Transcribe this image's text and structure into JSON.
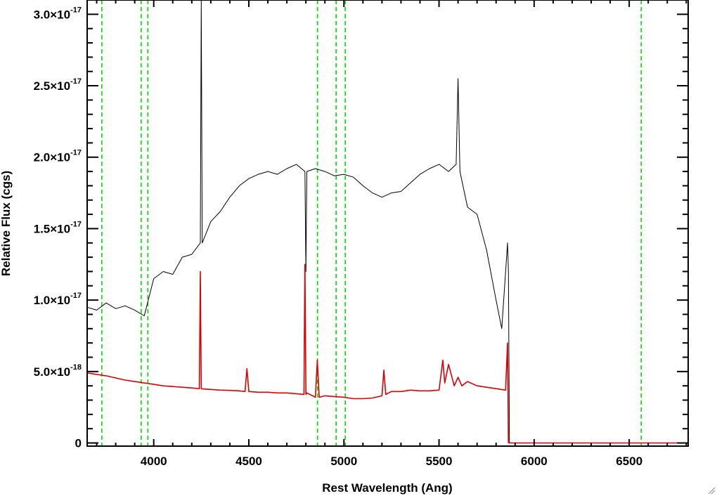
{
  "chart_data": {
    "type": "line",
    "title": "",
    "xlabel": "Rest Wavelength (Ang)",
    "ylabel": "Relative Flux (cgs)",
    "xlim": [
      3650,
      6810
    ],
    "ylim": [
      -2.2e-19,
      3.1e-17
    ],
    "x_ticks": [
      {
        "value": 4000,
        "label": "4000"
      },
      {
        "value": 4500,
        "label": "4500"
      },
      {
        "value": 5000,
        "label": "5000"
      },
      {
        "value": 5500,
        "label": "5500"
      },
      {
        "value": 6000,
        "label": "6000"
      },
      {
        "value": 6500,
        "label": "6500"
      }
    ],
    "y_ticks": [
      {
        "value": 0,
        "mantissa": "0",
        "exp": ""
      },
      {
        "value": 5e-18,
        "mantissa": "5.0×10",
        "exp": "-18"
      },
      {
        "value": 1e-17,
        "mantissa": "1.0×10",
        "exp": "-17"
      },
      {
        "value": 1.5e-17,
        "mantissa": "1.5×10",
        "exp": "-17"
      },
      {
        "value": 2e-17,
        "mantissa": "2.0×10",
        "exp": "-17"
      },
      {
        "value": 2.5e-17,
        "mantissa": "2.5×10",
        "exp": "-17"
      },
      {
        "value": 3e-17,
        "mantissa": "3.0×10",
        "exp": "-17"
      }
    ],
    "reference_lines": {
      "color": "#00dd00",
      "x": [
        3727,
        3934,
        3969,
        4861,
        4959,
        5007,
        6563
      ]
    },
    "series": [
      {
        "color": "#000000",
        "x": [
          3650,
          3700,
          3750,
          3800,
          3850,
          3900,
          3950,
          4000,
          4050,
          4100,
          4150,
          4200,
          4245,
          4250,
          4255,
          4300,
          4350,
          4400,
          4450,
          4500,
          4550,
          4600,
          4650,
          4700,
          4750,
          4795,
          4800,
          4805,
          4850,
          4900,
          4950,
          5000,
          5050,
          5100,
          5150,
          5200,
          5250,
          5300,
          5350,
          5400,
          5450,
          5500,
          5550,
          5590,
          5600,
          5610,
          5650,
          5700,
          5750,
          5800,
          5830,
          5860,
          5865,
          5870
        ],
        "y": [
          9.5e-18,
          9.3e-18,
          9.8e-18,
          9.4e-18,
          9.6e-18,
          9.3e-18,
          8.9e-18,
          1.15e-17,
          1.2e-17,
          1.18e-17,
          1.3e-17,
          1.32e-17,
          1.4e-17,
          3.1e-17,
          1.4e-17,
          1.55e-17,
          1.62e-17,
          1.72e-17,
          1.8e-17,
          1.85e-17,
          1.88e-17,
          1.9e-17,
          1.88e-17,
          1.92e-17,
          1.95e-17,
          1.9e-17,
          1.2e-17,
          1.9e-17,
          1.92e-17,
          1.9e-17,
          1.87e-17,
          1.88e-17,
          1.86e-17,
          1.8e-17,
          1.75e-17,
          1.72e-17,
          1.75e-17,
          1.76e-17,
          1.82e-17,
          1.88e-17,
          1.92e-17,
          1.95e-17,
          1.9e-17,
          1.95e-17,
          2.55e-17,
          1.9e-17,
          1.65e-17,
          1.6e-17,
          1.35e-17,
          1e-17,
          8e-18,
          1.4e-17,
          1.2e-17,
          0
        ]
      },
      {
        "color": "#dd0000",
        "x": [
          3650,
          3700,
          3750,
          3800,
          3850,
          3900,
          3950,
          4000,
          4050,
          4100,
          4150,
          4200,
          4240,
          4245,
          4250,
          4255,
          4300,
          4350,
          4400,
          4450,
          4480,
          4490,
          4500,
          4550,
          4600,
          4650,
          4700,
          4750,
          4790,
          4795,
          4800,
          4805,
          4850,
          4860,
          4870,
          4900,
          4950,
          5000,
          5050,
          5100,
          5150,
          5200,
          5210,
          5220,
          5250,
          5300,
          5350,
          5400,
          5450,
          5500,
          5520,
          5530,
          5550,
          5580,
          5600,
          5620,
          5650,
          5700,
          5750,
          5800,
          5850,
          5860,
          5865
        ],
        "y": [
          4.9e-18,
          4.8e-18,
          4.7e-18,
          4.55e-18,
          4.4e-18,
          4.3e-18,
          4.2e-18,
          4.1e-18,
          4e-18,
          3.95e-18,
          3.9e-18,
          3.85e-18,
          3.8e-18,
          1.2e-17,
          3.8e-18,
          3.78e-18,
          3.75e-18,
          3.7e-18,
          3.68e-18,
          3.65e-18,
          3.6e-18,
          5.2e-18,
          3.6e-18,
          3.55e-18,
          3.55e-18,
          3.5e-18,
          3.5e-18,
          3.45e-18,
          3.4e-18,
          1.25e-17,
          3.4e-18,
          3.5e-18,
          3.2e-18,
          5.8e-18,
          3.2e-18,
          3.3e-18,
          3.25e-18,
          3.2e-18,
          3.1e-18,
          3.1e-18,
          3.15e-18,
          3.3e-18,
          5.1e-18,
          3.4e-18,
          3.6e-18,
          3.6e-18,
          3.7e-18,
          3.65e-18,
          3.65e-18,
          3.7e-18,
          5.8e-18,
          4.2e-18,
          5.5e-18,
          4e-18,
          4.6e-18,
          4e-18,
          4.3e-18,
          4e-18,
          3.9e-18,
          3.8e-18,
          3.7e-18,
          7e-18,
          0
        ]
      },
      {
        "color": "#dd0000",
        "x": [
          5865,
          6810
        ],
        "y": [
          0,
          0
        ]
      }
    ]
  }
}
